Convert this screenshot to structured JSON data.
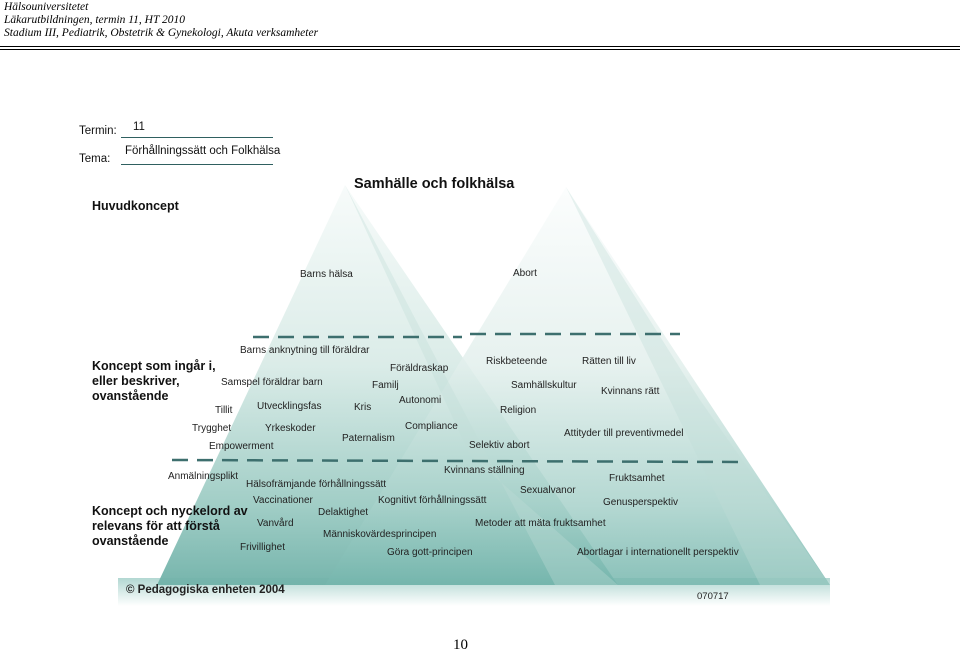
{
  "header": {
    "line1": "Hälsouniversitetet",
    "line2": "Läkarutbildningen, termin 11, HT 2010",
    "line3": "Stadium III, Pediatrik, Obstetrik & Gynekologi, Akuta verksamheter"
  },
  "form": {
    "termin_label": "Termin:",
    "termin_value": "11",
    "tema_label": "Tema:",
    "tema_value": "Förhållningssätt och Folkhälsa"
  },
  "diagram": {
    "title": "Samhälle och folkhälsa",
    "sections": {
      "huvudkoncept": "Huvudkoncept",
      "koncept": "Koncept som ingår i, eller beskriver, ovanstående",
      "nyckelord": "Koncept och nyckelord av relevans för att förstå ovanstående"
    },
    "main_concepts": [
      "Barns hälsa",
      "Abort"
    ],
    "concepts": [
      "Barns anknytning till föräldrar",
      "Föräldraskap",
      "Samspel föräldrar barn",
      "Familj",
      "Autonomi",
      "Tillit",
      "Utvecklingsfas",
      "Kris",
      "Trygghet",
      "Yrkeskoder",
      "Compliance",
      "Empowerment",
      "Paternalism",
      "Riskbeteende",
      "Rätten till liv",
      "Samhällskultur",
      "Kvinnans rätt",
      "Religion",
      "Attityder till preventivmedel",
      "Selektiv abort"
    ],
    "keywords": [
      "Anmälningsplikt",
      "Hälsofrämjande förhållningssätt",
      "Kvinnans ställning",
      "Fruktsamhet",
      "Sexualvanor",
      "Vaccinationer",
      "Kognitivt förhållningssätt",
      "Genusperspektiv",
      "Delaktighet",
      "Vanvård",
      "Metoder att mäta fruktsamhet",
      "Människovärdesprincipen",
      "Frivillighet",
      "Göra gott-principen",
      "Abortlagar i internationellt perspektiv"
    ],
    "copyright": "© Pedagogiska enheten 2004",
    "code": "070717"
  },
  "page_number": "10"
}
